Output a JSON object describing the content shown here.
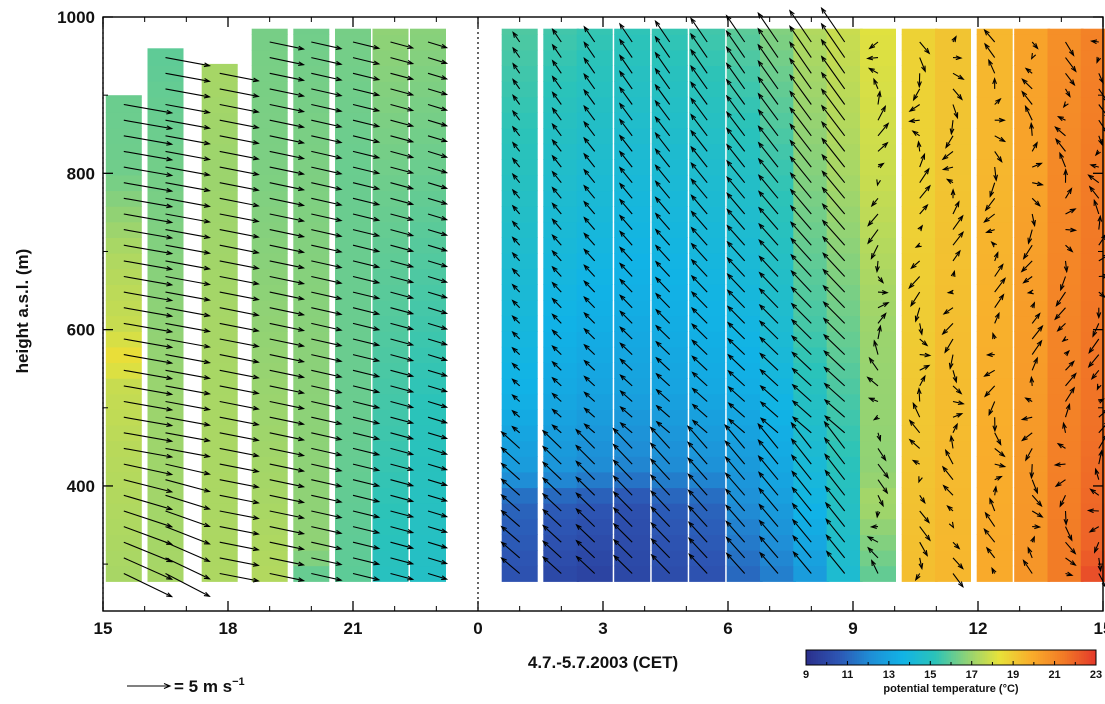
{
  "chart_data": {
    "type": "heatmap",
    "title": "",
    "xlabel": "4.7.-5.7.2003 (CET)",
    "ylabel": "height a.s.l. (m)",
    "xlim": [
      15,
      39
    ],
    "ylim": [
      240,
      1000
    ],
    "x_ticks": [
      15,
      18,
      21,
      24,
      27,
      30,
      33,
      36,
      39
    ],
    "x_tick_labels": [
      "15",
      "18",
      "21",
      "0",
      "3",
      "6",
      "9",
      "12",
      "15"
    ],
    "y_ticks": [
      400,
      600,
      800,
      1000
    ],
    "y_tick_labels": [
      "400",
      "600",
      "800",
      "1000"
    ],
    "dashed_vlines": [
      15,
      24
    ],
    "vector_legend": {
      "value": 5,
      "text": "= 5 m s",
      "exponent": "−1"
    },
    "colorbar": {
      "title": "potential temperature (°C)",
      "range": [
        9,
        23
      ],
      "ticks": [
        9,
        11,
        13,
        15,
        17,
        19,
        21,
        23
      ],
      "tick_labels": [
        "9",
        "11",
        "13",
        "15",
        "17",
        "19",
        "21",
        "23"
      ],
      "colors": [
        "#2b2f8c",
        "#2d55b3",
        "#1f8ed6",
        "#11b3e6",
        "#2bc3b9",
        "#8fd276",
        "#e8e23a",
        "#f9ad2b",
        "#f27a26",
        "#e5392b"
      ]
    },
    "profiles": [
      {
        "time": 15.5,
        "top": 900,
        "theta": [
          [
            280,
            17.2
          ],
          [
            450,
            17.5
          ],
          [
            540,
            17.8
          ],
          [
            560,
            18.6
          ],
          [
            600,
            17.8
          ],
          [
            700,
            17.3
          ],
          [
            800,
            16.3
          ],
          [
            900,
            16.2
          ]
        ]
      },
      {
        "time": 16.5,
        "top": 960,
        "theta": [
          [
            280,
            17.2
          ],
          [
            500,
            17.0
          ],
          [
            700,
            16.6
          ],
          [
            860,
            16.2
          ],
          [
            960,
            16.0
          ]
        ]
      },
      {
        "time": 17.8,
        "top": 940,
        "theta": [
          [
            280,
            17.3
          ],
          [
            600,
            17.2
          ],
          [
            800,
            17.0
          ],
          [
            940,
            17.2
          ]
        ]
      },
      {
        "time": 19.0,
        "top": 985,
        "theta": [
          [
            280,
            17.4
          ],
          [
            500,
            17.0
          ],
          [
            800,
            16.5
          ],
          [
            985,
            16.4
          ]
        ]
      },
      {
        "time": 20.0,
        "top": 985,
        "theta": [
          [
            280,
            16.0
          ],
          [
            320,
            16.8
          ],
          [
            600,
            16.7
          ],
          [
            900,
            16.4
          ],
          [
            985,
            16.3
          ]
        ]
      },
      {
        "time": 21.0,
        "top": 985,
        "theta": [
          [
            280,
            16.0
          ],
          [
            500,
            16.2
          ],
          [
            800,
            16.2
          ],
          [
            985,
            16.4
          ]
        ]
      },
      {
        "time": 21.9,
        "top": 985,
        "theta": [
          [
            280,
            15.0
          ],
          [
            500,
            15.6
          ],
          [
            800,
            16.3
          ],
          [
            985,
            16.8
          ]
        ]
      },
      {
        "time": 22.8,
        "top": 985,
        "theta": [
          [
            280,
            14.8
          ],
          [
            500,
            15.2
          ],
          [
            800,
            16.2
          ],
          [
            985,
            16.7
          ]
        ]
      },
      {
        "time": 25.0,
        "top": 985,
        "theta": [
          [
            280,
            10.4
          ],
          [
            380,
            11.0
          ],
          [
            420,
            12.6
          ],
          [
            520,
            13.6
          ],
          [
            800,
            15.0
          ],
          [
            985,
            15.8
          ]
        ]
      },
      {
        "time": 26.0,
        "top": 985,
        "theta": [
          [
            280,
            10.0
          ],
          [
            380,
            10.8
          ],
          [
            420,
            12.4
          ],
          [
            520,
            13.2
          ],
          [
            800,
            14.6
          ],
          [
            985,
            15.6
          ]
        ]
      },
      {
        "time": 26.8,
        "top": 985,
        "theta": [
          [
            280,
            9.8
          ],
          [
            380,
            10.6
          ],
          [
            420,
            12.0
          ],
          [
            520,
            13.0
          ],
          [
            800,
            14.4
          ],
          [
            985,
            15.4
          ]
        ]
      },
      {
        "time": 27.7,
        "top": 985,
        "theta": [
          [
            280,
            10.0
          ],
          [
            380,
            10.4
          ],
          [
            420,
            11.8
          ],
          [
            520,
            12.9
          ],
          [
            800,
            14.2
          ],
          [
            985,
            15.3
          ]
        ]
      },
      {
        "time": 28.6,
        "top": 985,
        "theta": [
          [
            280,
            10.2
          ],
          [
            380,
            10.8
          ],
          [
            420,
            12.0
          ],
          [
            520,
            13.0
          ],
          [
            800,
            14.3
          ],
          [
            985,
            15.4
          ]
        ]
      },
      {
        "time": 29.5,
        "top": 985,
        "theta": [
          [
            280,
            10.4
          ],
          [
            380,
            11.0
          ],
          [
            420,
            12.2
          ],
          [
            520,
            13.2
          ],
          [
            800,
            14.5
          ],
          [
            985,
            15.6
          ]
        ]
      },
      {
        "time": 30.4,
        "top": 985,
        "theta": [
          [
            280,
            11.0
          ],
          [
            400,
            12.4
          ],
          [
            520,
            13.4
          ],
          [
            800,
            14.8
          ],
          [
            985,
            16.0
          ]
        ]
      },
      {
        "time": 31.2,
        "top": 985,
        "theta": [
          [
            280,
            11.6
          ],
          [
            400,
            13.0
          ],
          [
            600,
            14.4
          ],
          [
            800,
            15.4
          ],
          [
            985,
            16.6
          ]
        ]
      },
      {
        "time": 32.0,
        "top": 985,
        "theta": [
          [
            280,
            12.6
          ],
          [
            400,
            14.0
          ],
          [
            600,
            15.6
          ],
          [
            800,
            16.6
          ],
          [
            985,
            17.4
          ]
        ]
      },
      {
        "time": 32.8,
        "top": 985,
        "theta": [
          [
            280,
            14.4
          ],
          [
            400,
            15.0
          ],
          [
            600,
            16.2
          ],
          [
            800,
            17.2
          ],
          [
            985,
            17.8
          ]
        ]
      },
      {
        "time": 33.6,
        "top": 985,
        "theta": [
          [
            280,
            16.0
          ],
          [
            380,
            17.2
          ],
          [
            420,
            16.8
          ],
          [
            600,
            17.0
          ],
          [
            800,
            17.8
          ],
          [
            985,
            18.2
          ]
        ]
      },
      {
        "time": 34.6,
        "top": 985,
        "theta": [
          [
            280,
            19.4
          ],
          [
            600,
            19.0
          ],
          [
            800,
            18.8
          ],
          [
            985,
            18.8
          ]
        ]
      },
      {
        "time": 35.4,
        "top": 985,
        "theta": [
          [
            280,
            19.6
          ],
          [
            600,
            19.4
          ],
          [
            800,
            19.2
          ],
          [
            985,
            19.2
          ]
        ]
      },
      {
        "time": 36.4,
        "top": 985,
        "theta": [
          [
            280,
            20.0
          ],
          [
            600,
            19.8
          ],
          [
            800,
            19.6
          ],
          [
            985,
            19.6
          ]
        ]
      },
      {
        "time": 37.3,
        "top": 985,
        "theta": [
          [
            280,
            20.6
          ],
          [
            600,
            20.4
          ],
          [
            800,
            20.2
          ],
          [
            985,
            20.2
          ]
        ]
      },
      {
        "time": 38.1,
        "top": 985,
        "theta": [
          [
            280,
            21.4
          ],
          [
            500,
            21.2
          ],
          [
            800,
            21.0
          ],
          [
            985,
            20.8
          ]
        ]
      },
      {
        "time": 38.9,
        "top": 985,
        "theta": [
          [
            280,
            22.6
          ],
          [
            320,
            22.0
          ],
          [
            500,
            21.6
          ],
          [
            800,
            21.4
          ],
          [
            985,
            21.2
          ]
        ]
      }
    ]
  }
}
